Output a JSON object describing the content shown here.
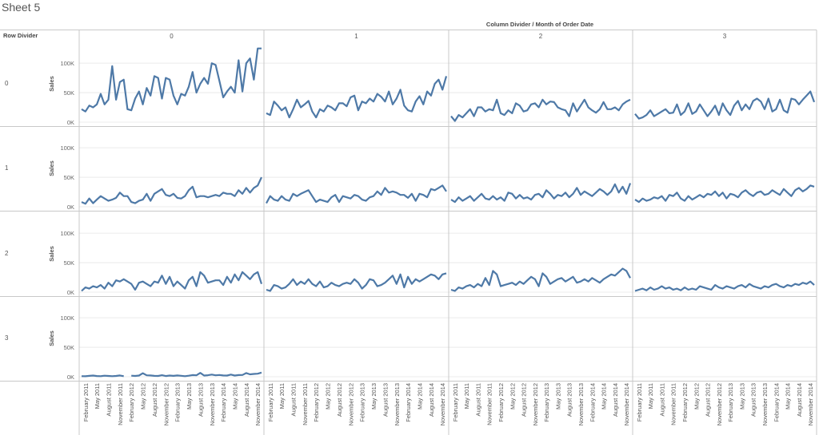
{
  "sheet_title": "Sheet 5",
  "header": {
    "row_divider_label": "Row Divider",
    "column_header": "Column Divider  /  Month of Order Date"
  },
  "colors": {
    "line": "#4e79a7",
    "grid": "#e6e6e6",
    "border": "#c8c8c8"
  },
  "chart_data": {
    "type": "line",
    "ylabel": "Sales",
    "ylim": [
      0,
      130000
    ],
    "yticks": [
      0,
      50000,
      100000
    ],
    "ytick_labels": [
      "0K",
      "50K",
      "100K"
    ],
    "row_labels": [
      "0",
      "1",
      "2",
      "3"
    ],
    "column_labels": [
      "0",
      "1",
      "2",
      "3"
    ],
    "x_tick_labels": [
      "February 2011",
      "May 2011",
      "August 2011",
      "November 2011",
      "February 2012",
      "May 2012",
      "August 2012",
      "November 2012",
      "February 2013",
      "May 2013",
      "August 2013",
      "November 2013",
      "February 2014",
      "May 2014",
      "August 2014",
      "November 2014"
    ],
    "x_months": 48,
    "x_start": "January 2011",
    "panels": [
      {
        "row": 0,
        "col": 0,
        "values": [
          22000,
          18000,
          28000,
          25000,
          30000,
          48000,
          30000,
          38000,
          95000,
          38000,
          68000,
          72000,
          22000,
          20000,
          40000,
          52000,
          30000,
          58000,
          45000,
          78000,
          75000,
          40000,
          75000,
          72000,
          45000,
          30000,
          48000,
          45000,
          60000,
          85000,
          50000,
          65000,
          75000,
          65000,
          100000,
          97000,
          70000,
          42000,
          52000,
          60000,
          50000,
          105000,
          52000,
          100000,
          108000,
          72000,
          125000,
          125000
        ]
      },
      {
        "row": 0,
        "col": 1,
        "values": [
          15000,
          12000,
          35000,
          28000,
          20000,
          25000,
          8000,
          22000,
          38000,
          25000,
          30000,
          36000,
          18000,
          8000,
          22000,
          18000,
          28000,
          25000,
          20000,
          32000,
          32000,
          27000,
          42000,
          45000,
          20000,
          35000,
          32000,
          40000,
          35000,
          48000,
          43000,
          35000,
          52000,
          30000,
          40000,
          55000,
          28000,
          20000,
          18000,
          35000,
          44000,
          30000,
          52000,
          45000,
          65000,
          72000,
          55000,
          78000
        ]
      },
      {
        "row": 1,
        "col": 0,
        "values": [
          8000,
          5000,
          14000,
          6000,
          12000,
          18000,
          14000,
          10000,
          12000,
          15000,
          24000,
          18000,
          18000,
          8000,
          6000,
          10000,
          12000,
          22000,
          10000,
          22000,
          26000,
          30000,
          20000,
          18000,
          22000,
          15000,
          14000,
          18000,
          28000,
          34000,
          16000,
          18000,
          18000,
          16000,
          18000,
          20000,
          18000,
          24000,
          22000,
          22000,
          18000,
          28000,
          22000,
          32000,
          24000,
          32000,
          36000,
          50000
        ]
      },
      {
        "row": 1,
        "col": 1,
        "values": [
          6000,
          18000,
          12000,
          10000,
          18000,
          12000,
          10000,
          22000,
          18000,
          22000,
          25000,
          28000,
          18000,
          8000,
          12000,
          10000,
          8000,
          16000,
          20000,
          8000,
          18000,
          16000,
          14000,
          20000,
          18000,
          12000,
          10000,
          16000,
          18000,
          26000,
          20000,
          32000,
          24000,
          26000,
          24000,
          20000,
          20000,
          15000,
          22000,
          10000,
          22000,
          20000,
          16000,
          30000,
          28000,
          32000,
          36000,
          26000
        ]
      },
      {
        "row": 2,
        "col": 0,
        "values": [
          2000,
          8000,
          6000,
          10000,
          8000,
          12000,
          6000,
          16000,
          10000,
          20000,
          18000,
          22000,
          18000,
          14000,
          4000,
          16000,
          18000,
          14000,
          10000,
          18000,
          16000,
          28000,
          14000,
          26000,
          10000,
          18000,
          12000,
          6000,
          20000,
          26000,
          10000,
          34000,
          28000,
          16000,
          18000,
          20000,
          20000,
          12000,
          26000,
          16000,
          30000,
          20000,
          34000,
          28000,
          22000,
          30000,
          34000,
          14000
        ]
      },
      {
        "row": 2,
        "col": 1,
        "values": [
          4000,
          2000,
          12000,
          10000,
          6000,
          8000,
          14000,
          22000,
          12000,
          18000,
          14000,
          22000,
          14000,
          10000,
          18000,
          8000,
          10000,
          16000,
          12000,
          10000,
          14000,
          16000,
          14000,
          22000,
          16000,
          6000,
          12000,
          22000,
          20000,
          10000,
          12000,
          16000,
          22000,
          28000,
          14000,
          30000,
          8000,
          26000,
          14000,
          22000,
          18000,
          22000,
          26000,
          30000,
          28000,
          22000,
          30000,
          32000
        ]
      },
      {
        "row": 3,
        "col": 0,
        "values": [
          1000,
          800,
          1500,
          2000,
          1200,
          900,
          1800,
          1300,
          1000,
          1400,
          2200,
          900,
          null,
          1800,
          1400,
          2000,
          6000,
          2500,
          2200,
          1500,
          1400,
          2600,
          1200,
          2000,
          1500,
          2200,
          1600,
          1000,
          1800,
          2800,
          2400,
          6500,
          2000,
          2600,
          3600,
          2400,
          3000,
          2200,
          2000,
          3600,
          2000,
          2800,
          3000,
          6200,
          4000,
          4800,
          5200,
          7000
        ]
      },
      {
        "row": 0,
        "col": 2,
        "values": [
          10000,
          2000,
          12000,
          8000,
          15000,
          22000,
          10000,
          25000,
          25000,
          18000,
          22000,
          20000,
          38000,
          15000,
          12000,
          20000,
          15000,
          32000,
          28000,
          18000,
          20000,
          30000,
          32000,
          25000,
          38000,
          30000,
          35000,
          34000,
          25000,
          22000,
          20000,
          10000,
          32000,
          18000,
          28000,
          38000,
          25000,
          20000,
          16000,
          22000,
          34000,
          22000,
          22000,
          25000,
          20000,
          30000,
          35000,
          38000
        ]
      },
      {
        "row": 0,
        "col": 3,
        "values": [
          14000,
          6000,
          8000,
          12000,
          20000,
          10000,
          14000,
          18000,
          22000,
          15000,
          16000,
          30000,
          12000,
          18000,
          32000,
          14000,
          18000,
          30000,
          20000,
          10000,
          18000,
          28000,
          12000,
          32000,
          20000,
          12000,
          28000,
          36000,
          20000,
          30000,
          22000,
          36000,
          40000,
          35000,
          22000,
          40000,
          18000,
          22000,
          38000,
          20000,
          16000,
          40000,
          38000,
          30000,
          38000,
          45000,
          52000,
          34000
        ]
      },
      {
        "row": 1,
        "col": 2,
        "values": [
          12000,
          8000,
          16000,
          10000,
          14000,
          18000,
          10000,
          16000,
          22000,
          14000,
          12000,
          18000,
          12000,
          16000,
          10000,
          24000,
          22000,
          14000,
          20000,
          14000,
          16000,
          12000,
          20000,
          22000,
          16000,
          28000,
          22000,
          14000,
          20000,
          18000,
          24000,
          16000,
          22000,
          32000,
          20000,
          26000,
          22000,
          18000,
          24000,
          30000,
          26000,
          20000,
          26000,
          38000,
          24000,
          34000,
          22000,
          40000
        ]
      },
      {
        "row": 1,
        "col": 3,
        "values": [
          12000,
          8000,
          14000,
          10000,
          12000,
          16000,
          14000,
          18000,
          10000,
          20000,
          18000,
          24000,
          14000,
          10000,
          18000,
          12000,
          16000,
          20000,
          16000,
          22000,
          20000,
          26000,
          18000,
          24000,
          14000,
          22000,
          20000,
          16000,
          24000,
          28000,
          22000,
          18000,
          24000,
          26000,
          20000,
          22000,
          28000,
          24000,
          20000,
          30000,
          24000,
          18000,
          28000,
          32000,
          26000,
          30000,
          36000,
          34000
        ]
      },
      {
        "row": 2,
        "col": 2,
        "values": [
          4000,
          2000,
          8000,
          6000,
          10000,
          12000,
          8000,
          14000,
          10000,
          24000,
          12000,
          36000,
          30000,
          10000,
          12000,
          14000,
          16000,
          12000,
          18000,
          14000,
          20000,
          26000,
          22000,
          10000,
          32000,
          26000,
          14000,
          18000,
          22000,
          24000,
          18000,
          22000,
          26000,
          16000,
          18000,
          22000,
          18000,
          24000,
          20000,
          16000,
          22000,
          26000,
          30000,
          28000,
          34000,
          40000,
          36000,
          24000
        ]
      },
      {
        "row": 2,
        "col": 3,
        "values": [
          2000,
          4000,
          6000,
          3000,
          8000,
          4000,
          6000,
          10000,
          6000,
          8000,
          4000,
          6000,
          3000,
          8000,
          4000,
          6000,
          4000,
          10000,
          8000,
          6000,
          4000,
          12000,
          8000,
          6000,
          10000,
          8000,
          6000,
          10000,
          12000,
          8000,
          14000,
          10000,
          8000,
          6000,
          10000,
          8000,
          12000,
          14000,
          10000,
          8000,
          12000,
          10000,
          14000,
          12000,
          16000,
          14000,
          18000,
          12000
        ]
      }
    ]
  }
}
